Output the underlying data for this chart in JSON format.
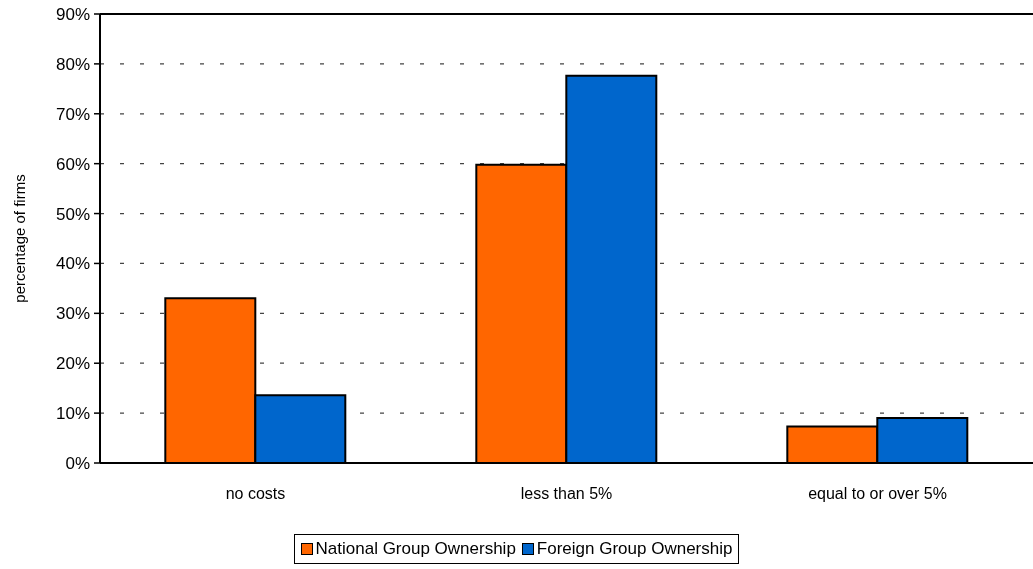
{
  "chart_data": {
    "type": "bar",
    "ylabel": "percentage of firms",
    "categories": [
      "no costs",
      "less than 5%",
      "equal to or over 5%"
    ],
    "series": [
      {
        "name": "National Group Ownership",
        "color": "#ff6600",
        "values": [
          33,
          59.8,
          7.3
        ]
      },
      {
        "name": "Foreign Group Ownership",
        "color": "#0066cc",
        "values": [
          13.6,
          77.6,
          9
        ]
      }
    ],
    "ylim": [
      0,
      90
    ],
    "yticks": [
      {
        "value": 0,
        "label": "0%"
      },
      {
        "value": 10,
        "label": "10%"
      },
      {
        "value": 20,
        "label": "20%"
      },
      {
        "value": 30,
        "label": "30%"
      },
      {
        "value": 40,
        "label": "40%"
      },
      {
        "value": 50,
        "label": "50%"
      },
      {
        "value": 60,
        "label": "60%"
      },
      {
        "value": 70,
        "label": "70%"
      },
      {
        "value": 80,
        "label": "80%"
      },
      {
        "value": 90,
        "label": "90%"
      }
    ],
    "grid": "y",
    "legend": "bottom"
  }
}
